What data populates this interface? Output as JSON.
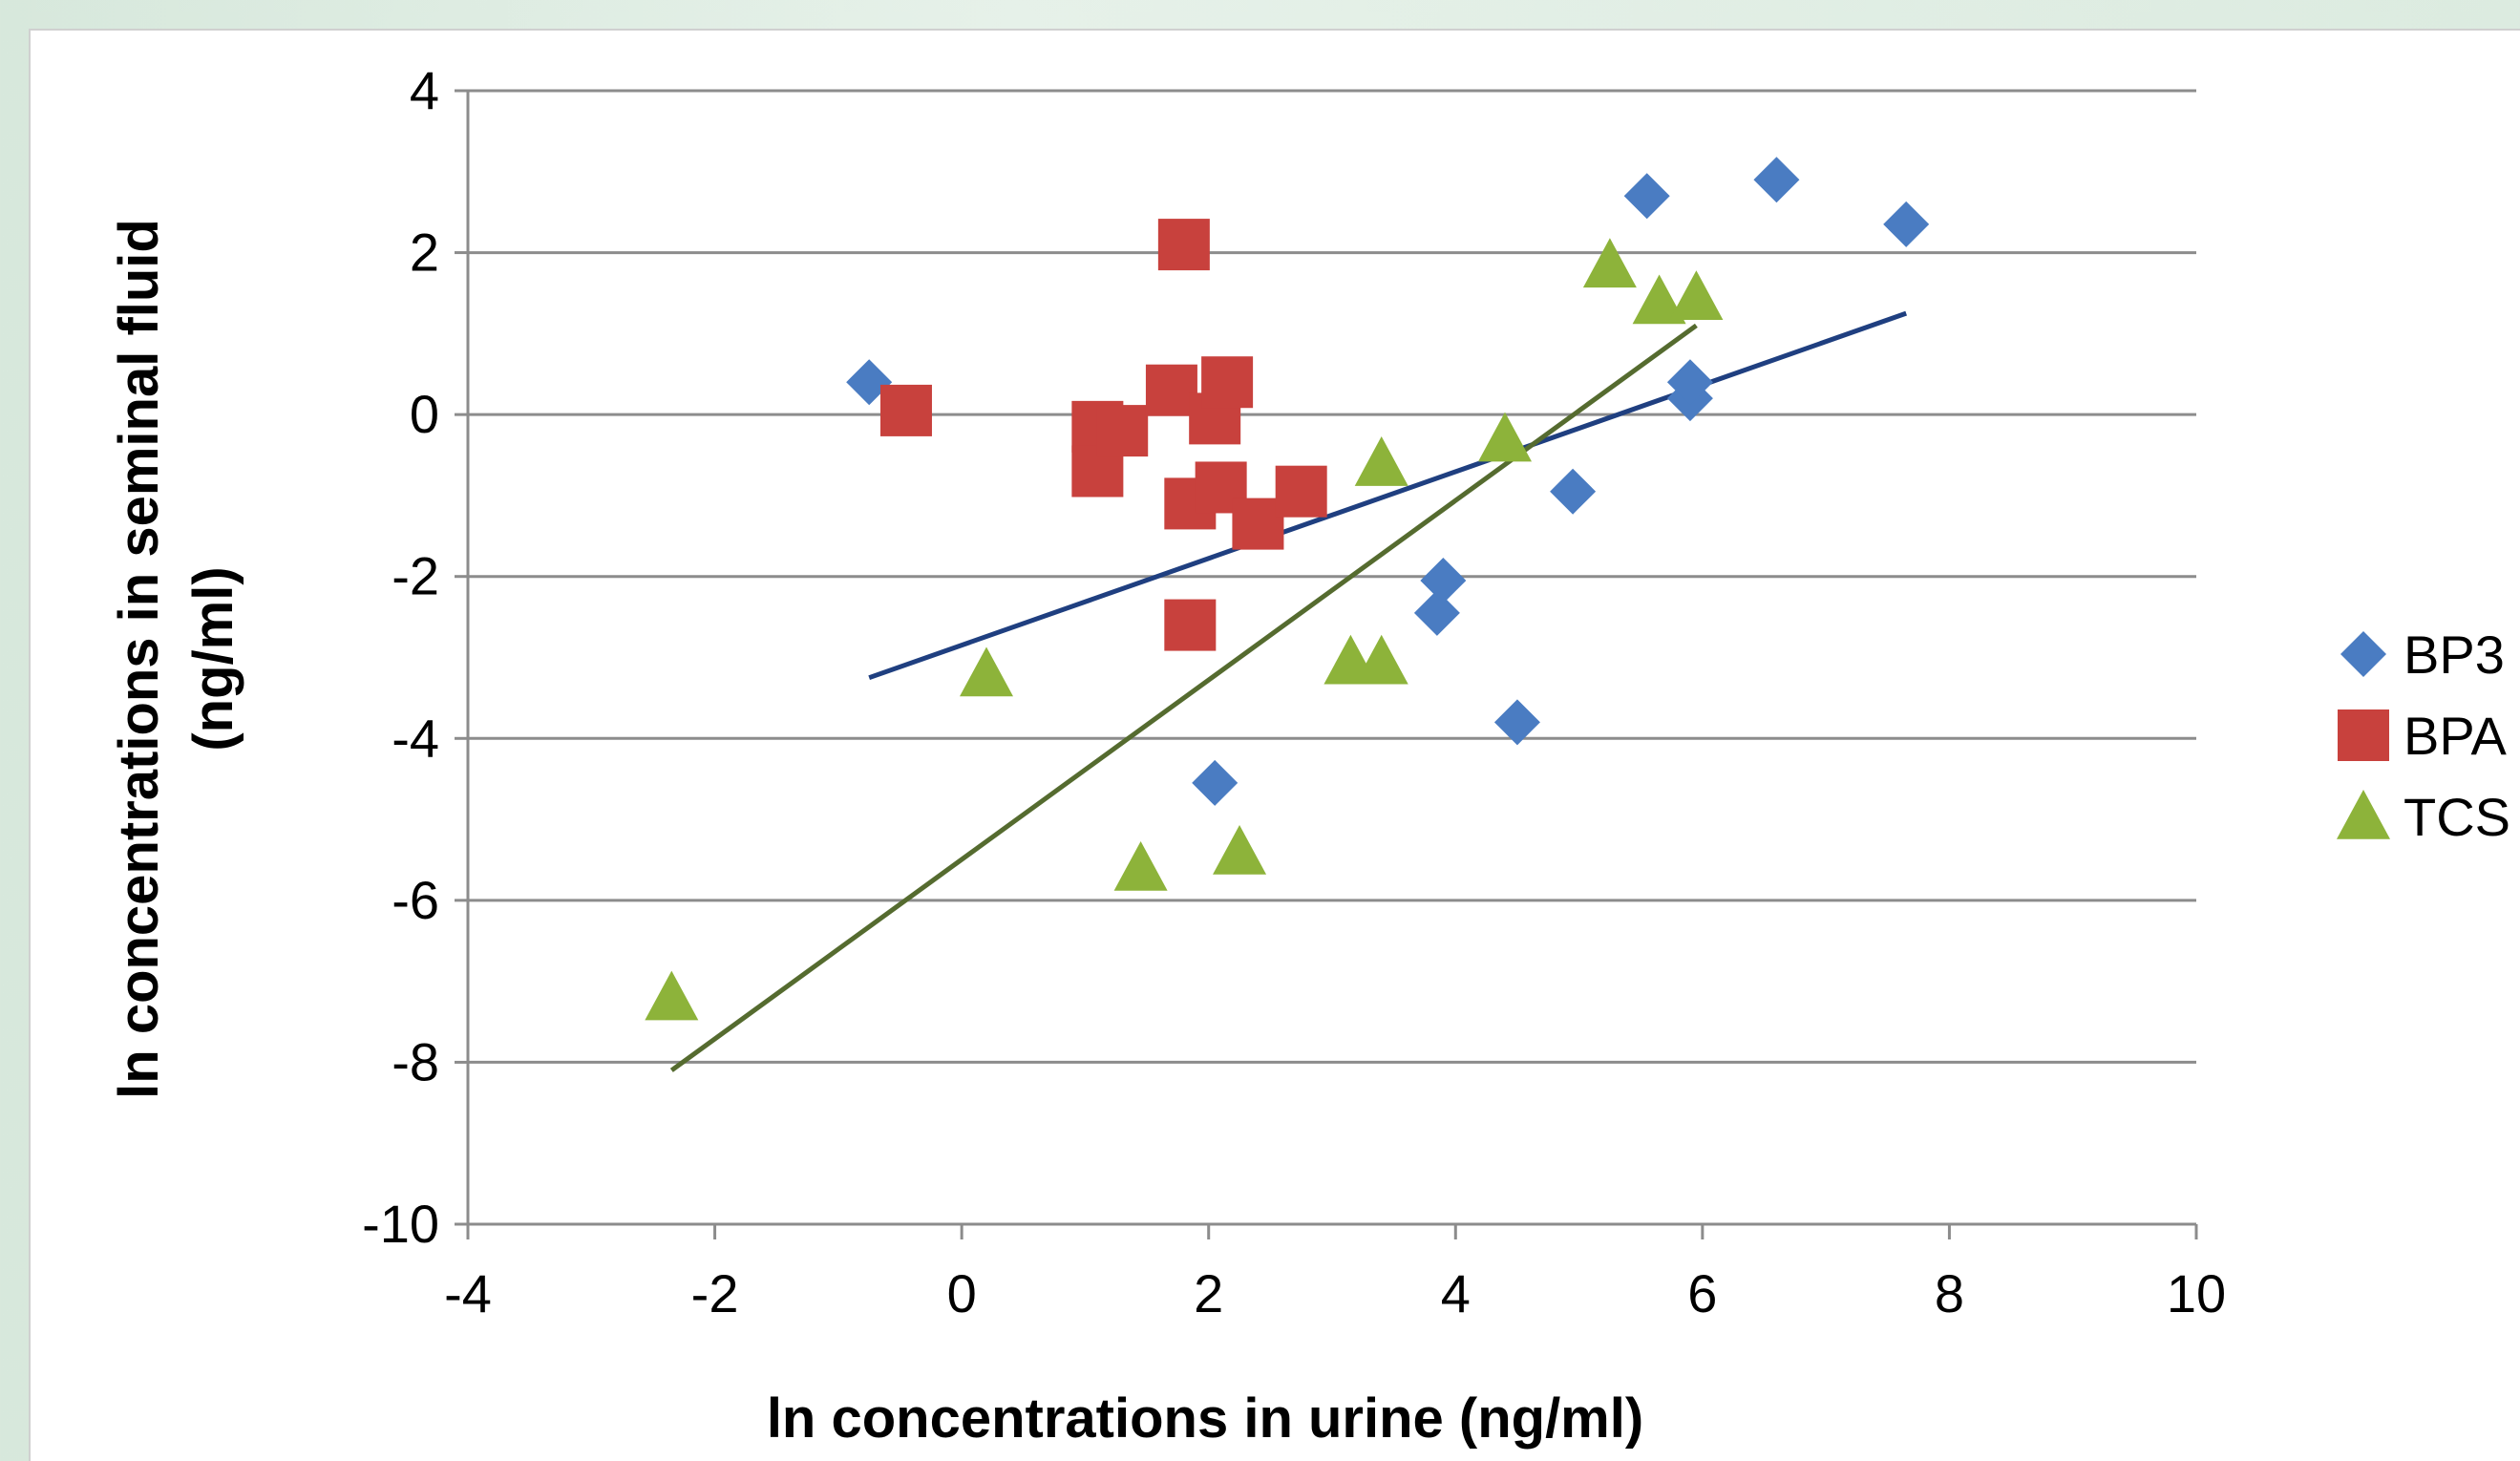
{
  "chart_data": {
    "type": "scatter",
    "title": "",
    "xlabel": "ln concentrations in urine (ng/ml)",
    "ylabel_line1": "ln concentrations in seminal fluid",
    "ylabel_line2": "(ng/ml)",
    "xlim": [
      -4,
      10
    ],
    "ylim": [
      -10,
      4
    ],
    "xticks": [
      -4,
      -2,
      0,
      2,
      4,
      6,
      8,
      10
    ],
    "yticks": [
      -10,
      -8,
      -6,
      -4,
      -2,
      0,
      2,
      4
    ],
    "grid": "horizontal",
    "legend_position": "right",
    "series": [
      {
        "name": "BP3",
        "marker": "diamond",
        "color": "#4a7cc2",
        "points": [
          [
            -0.75,
            0.4
          ],
          [
            2.05,
            -4.55
          ],
          [
            3.85,
            -2.45
          ],
          [
            3.9,
            -2.05
          ],
          [
            4.5,
            -3.8
          ],
          [
            4.95,
            -0.95
          ],
          [
            5.55,
            2.7
          ],
          [
            5.9,
            0.2
          ],
          [
            5.9,
            0.4
          ],
          [
            6.6,
            2.9
          ],
          [
            7.65,
            2.35
          ]
        ],
        "trend": [
          [
            -0.75,
            -3.25
          ],
          [
            7.65,
            1.25
          ]
        ],
        "trend_color": "#1f3f80"
      },
      {
        "name": "BPA",
        "marker": "square",
        "color": "#c8413d",
        "points": [
          [
            -0.45,
            0.05
          ],
          [
            1.1,
            -0.15
          ],
          [
            1.1,
            -0.7
          ],
          [
            1.3,
            -0.2
          ],
          [
            1.7,
            0.3
          ],
          [
            1.8,
            2.1
          ],
          [
            1.85,
            -1.1
          ],
          [
            1.85,
            -2.6
          ],
          [
            2.05,
            -0.05
          ],
          [
            2.1,
            -0.9
          ],
          [
            2.15,
            0.4
          ],
          [
            2.4,
            -1.35
          ],
          [
            2.75,
            -0.95
          ]
        ]
      },
      {
        "name": "TCS",
        "marker": "triangle",
        "color": "#8db33a",
        "points": [
          [
            -2.35,
            -7.2
          ],
          [
            0.2,
            -3.2
          ],
          [
            1.45,
            -5.6
          ],
          [
            2.25,
            -5.4
          ],
          [
            3.15,
            -3.05
          ],
          [
            3.4,
            -3.05
          ],
          [
            3.4,
            -0.6
          ],
          [
            4.4,
            -0.3
          ],
          [
            5.25,
            1.85
          ],
          [
            5.65,
            1.4
          ],
          [
            5.95,
            1.45
          ]
        ],
        "trend": [
          [
            -2.35,
            -8.1
          ],
          [
            5.95,
            1.1
          ]
        ],
        "trend_color": "#556b2f"
      }
    ]
  }
}
